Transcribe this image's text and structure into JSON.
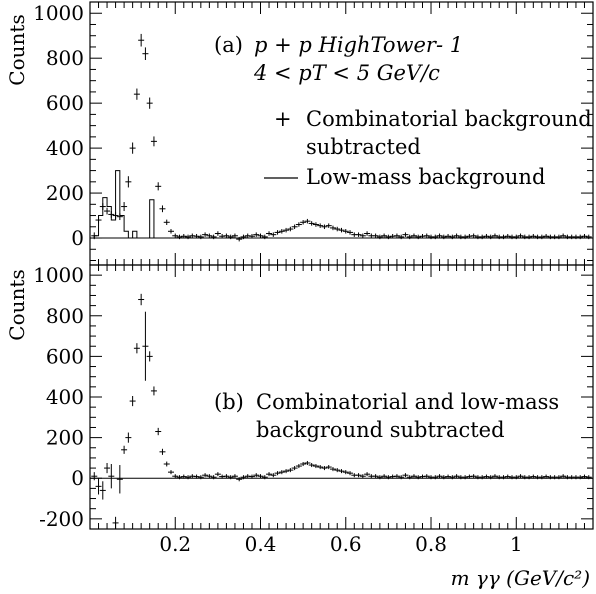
{
  "chart_data": [
    {
      "type": "scatter",
      "panel": "a",
      "ylabel": "Counts",
      "xlim": [
        0.0,
        1.18
      ],
      "ylim": [
        -120,
        1050
      ],
      "yticks": [
        0,
        200,
        400,
        600,
        800,
        1000
      ],
      "annotations": {
        "label": "(a)",
        "line1": "p + p HighTower- 1",
        "line2": "4 < pT < 5 GeV/c",
        "legend_marker": "+",
        "legend_points_line1": "Combinatorial background",
        "legend_points_line2": "subtracted",
        "legend_hist": "Low-mass background"
      },
      "series": [
        {
          "name": "Combinatorial background subtracted",
          "x": [
            0.01,
            0.02,
            0.03,
            0.04,
            0.05,
            0.06,
            0.07,
            0.08,
            0.09,
            0.1,
            0.11,
            0.12,
            0.13,
            0.14,
            0.15,
            0.16,
            0.17,
            0.18,
            0.19,
            0.2,
            0.21,
            0.22,
            0.23,
            0.24,
            0.25,
            0.26,
            0.27,
            0.28,
            0.29,
            0.3,
            0.31,
            0.32,
            0.33,
            0.34,
            0.35,
            0.36,
            0.37,
            0.38,
            0.39,
            0.4,
            0.41,
            0.42,
            0.43,
            0.44,
            0.45,
            0.46,
            0.47,
            0.48,
            0.49,
            0.5,
            0.51,
            0.52,
            0.53,
            0.54,
            0.55,
            0.56,
            0.57,
            0.58,
            0.59,
            0.6,
            0.61,
            0.62,
            0.63,
            0.64,
            0.65,
            0.66,
            0.67,
            0.68,
            0.69,
            0.7,
            0.71,
            0.72,
            0.73,
            0.74,
            0.75,
            0.76,
            0.77,
            0.78,
            0.79,
            0.8,
            0.81,
            0.82,
            0.83,
            0.84,
            0.85,
            0.86,
            0.87,
            0.88,
            0.89,
            0.9,
            0.91,
            0.92,
            0.93,
            0.94,
            0.95,
            0.96,
            0.97,
            0.98,
            0.99,
            1.0,
            1.01,
            1.02,
            1.03,
            1.04,
            1.05,
            1.06,
            1.07,
            1.08,
            1.09,
            1.1,
            1.11,
            1.12,
            1.13,
            1.14,
            1.15,
            1.16,
            1.17
          ],
          "y": [
            10,
            80,
            140,
            120,
            105,
            100,
            95,
            140,
            250,
            400,
            640,
            880,
            820,
            600,
            430,
            230,
            130,
            70,
            30,
            10,
            5,
            8,
            5,
            10,
            8,
            5,
            15,
            10,
            5,
            20,
            8,
            10,
            5,
            10,
            -5,
            5,
            10,
            8,
            15,
            10,
            5,
            20,
            15,
            25,
            30,
            35,
            40,
            50,
            60,
            70,
            75,
            65,
            60,
            55,
            50,
            55,
            45,
            40,
            35,
            30,
            25,
            15,
            15,
            10,
            20,
            10,
            10,
            5,
            10,
            5,
            8,
            10,
            5,
            15,
            5,
            10,
            5,
            8,
            10,
            5,
            5,
            10,
            5,
            8,
            5,
            10,
            5,
            5,
            8,
            10,
            5,
            5,
            8,
            5,
            10,
            5,
            5,
            8,
            5,
            5,
            10,
            5,
            5,
            8,
            5,
            5,
            8,
            5,
            5,
            5,
            10,
            5,
            5,
            5,
            5,
            8,
            5
          ],
          "yerr": [
            15,
            15,
            15,
            15,
            15,
            15,
            15,
            20,
            25,
            25,
            25,
            28,
            28,
            25,
            22,
            18,
            15,
            12,
            10,
            10,
            10,
            10,
            10,
            10,
            10,
            10,
            10,
            10,
            10,
            10,
            10,
            10,
            10,
            10,
            10,
            10,
            10,
            10,
            10,
            10,
            10,
            10,
            10,
            10,
            10,
            10,
            10,
            10,
            10,
            10,
            10,
            10,
            10,
            10,
            10,
            10,
            10,
            10,
            10,
            10,
            10,
            10,
            10,
            10,
            10,
            10,
            10,
            10,
            10,
            10,
            10,
            10,
            10,
            10,
            10,
            10,
            10,
            10,
            10,
            10,
            10,
            10,
            10,
            10,
            10,
            10,
            10,
            10,
            10,
            10,
            10,
            10,
            10,
            10,
            10,
            10,
            10,
            10,
            10,
            10,
            10,
            10,
            10,
            10,
            10,
            10,
            10,
            10,
            10,
            10,
            10,
            10,
            10,
            10,
            10,
            10,
            10
          ]
        },
        {
          "name": "Low-mass background",
          "type": "step",
          "edges": [
            0.0,
            0.01,
            0.02,
            0.03,
            0.04,
            0.05,
            0.06,
            0.07,
            0.08,
            0.09,
            0.1,
            0.11,
            0.12,
            0.13,
            0.14,
            0.15,
            0.16
          ],
          "values": [
            0,
            10,
            100,
            180,
            140,
            80,
            300,
            100,
            30,
            0,
            30,
            0,
            0,
            0,
            170,
            0
          ]
        }
      ]
    },
    {
      "type": "scatter",
      "panel": "b",
      "ylabel": "Counts",
      "xlabel": "m γγ (GeV/c²)",
      "xlim": [
        0.0,
        1.18
      ],
      "ylim": [
        -250,
        1050
      ],
      "yticks": [
        -200,
        0,
        200,
        400,
        600,
        800,
        1000
      ],
      "xticks": [
        0.2,
        0.4,
        0.6,
        0.8,
        1.0
      ],
      "xtick_labels": [
        "0.2",
        "0.4",
        "0.6",
        "0.8",
        "1"
      ],
      "annotations": {
        "label": "(b)",
        "line1": "Combinatorial and low-mass",
        "line2": "background subtracted"
      },
      "series": [
        {
          "name": "Combinatorial and low-mass background subtracted",
          "x": [
            0.01,
            0.02,
            0.03,
            0.04,
            0.05,
            0.06,
            0.07,
            0.08,
            0.09,
            0.1,
            0.11,
            0.12,
            0.13,
            0.14,
            0.15,
            0.16,
            0.17,
            0.18,
            0.19,
            0.2,
            0.21,
            0.22,
            0.23,
            0.24,
            0.25,
            0.26,
            0.27,
            0.28,
            0.29,
            0.3,
            0.31,
            0.32,
            0.33,
            0.34,
            0.35,
            0.36,
            0.37,
            0.38,
            0.39,
            0.4,
            0.41,
            0.42,
            0.43,
            0.44,
            0.45,
            0.46,
            0.47,
            0.48,
            0.49,
            0.5,
            0.51,
            0.52,
            0.53,
            0.54,
            0.55,
            0.56,
            0.57,
            0.58,
            0.59,
            0.6,
            0.61,
            0.62,
            0.63,
            0.64,
            0.65,
            0.66,
            0.67,
            0.68,
            0.69,
            0.7,
            0.71,
            0.72,
            0.73,
            0.74,
            0.75,
            0.76,
            0.77,
            0.78,
            0.79,
            0.8,
            0.81,
            0.82,
            0.83,
            0.84,
            0.85,
            0.86,
            0.87,
            0.88,
            0.89,
            0.9,
            0.91,
            0.92,
            0.93,
            0.94,
            0.95,
            0.96,
            0.97,
            0.98,
            0.99,
            1.0,
            1.01,
            1.02,
            1.03,
            1.04,
            1.05,
            1.06,
            1.07,
            1.08,
            1.09,
            1.1,
            1.11,
            1.12,
            1.13,
            1.14,
            1.15,
            1.16,
            1.17
          ],
          "y": [
            10,
            -40,
            -60,
            50,
            10,
            -220,
            -5,
            140,
            200,
            380,
            640,
            880,
            650,
            600,
            430,
            230,
            130,
            70,
            30,
            10,
            5,
            8,
            5,
            10,
            8,
            5,
            15,
            10,
            5,
            20,
            8,
            10,
            5,
            10,
            -5,
            5,
            10,
            8,
            15,
            10,
            5,
            20,
            15,
            25,
            30,
            35,
            40,
            50,
            60,
            70,
            75,
            65,
            60,
            55,
            50,
            55,
            45,
            40,
            35,
            30,
            25,
            15,
            15,
            10,
            20,
            10,
            10,
            5,
            10,
            5,
            8,
            10,
            5,
            15,
            5,
            10,
            5,
            8,
            10,
            5,
            5,
            10,
            5,
            8,
            5,
            10,
            5,
            5,
            8,
            10,
            5,
            5,
            8,
            5,
            10,
            5,
            5,
            8,
            5,
            5,
            10,
            5,
            5,
            8,
            5,
            5,
            8,
            5,
            5,
            5,
            10,
            5,
            5,
            5,
            5,
            8,
            5
          ],
          "yerr": [
            20,
            40,
            45,
            25,
            60,
            30,
            70,
            20,
            25,
            25,
            25,
            28,
            170,
            25,
            22,
            18,
            15,
            12,
            10,
            10,
            10,
            10,
            10,
            10,
            10,
            10,
            10,
            10,
            10,
            10,
            10,
            10,
            10,
            10,
            10,
            10,
            10,
            10,
            10,
            10,
            10,
            10,
            10,
            10,
            10,
            10,
            10,
            10,
            10,
            10,
            10,
            10,
            10,
            10,
            10,
            10,
            10,
            10,
            10,
            10,
            10,
            10,
            10,
            10,
            10,
            10,
            10,
            10,
            10,
            10,
            10,
            10,
            10,
            10,
            10,
            10,
            10,
            10,
            10,
            10,
            10,
            10,
            10,
            10,
            10,
            10,
            10,
            10,
            10,
            10,
            10,
            10,
            10,
            10,
            10,
            10,
            10,
            10,
            10,
            10,
            10,
            10,
            10,
            10,
            10,
            10,
            10,
            10,
            10,
            10,
            10,
            10,
            10,
            10,
            10,
            10,
            10
          ]
        }
      ]
    }
  ]
}
